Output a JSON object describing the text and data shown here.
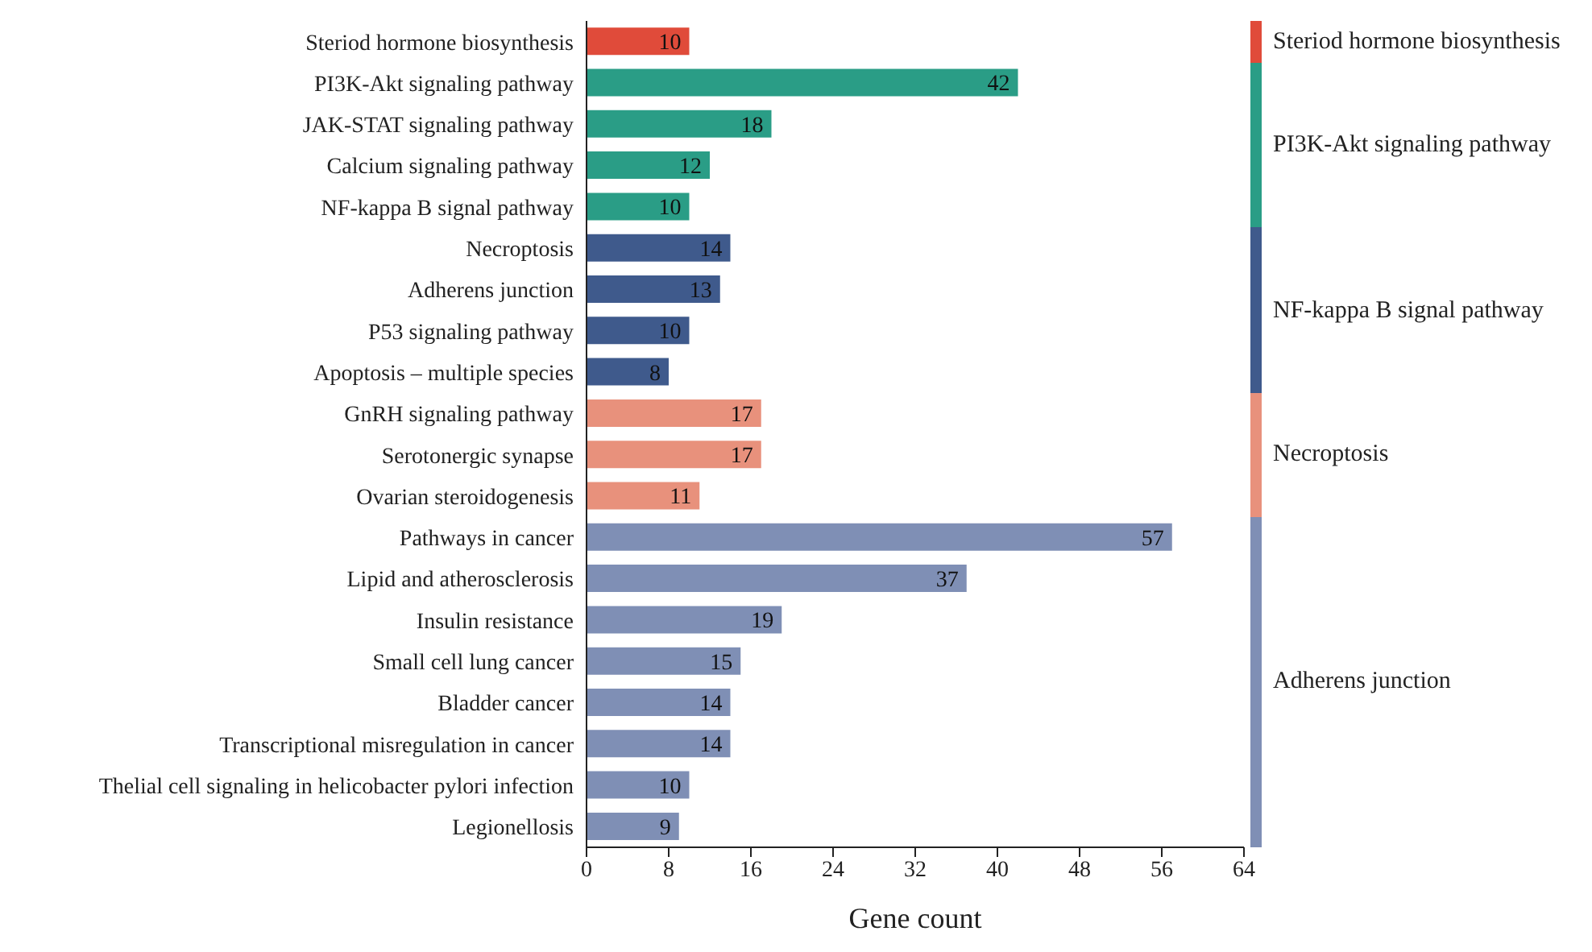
{
  "chart_data": {
    "type": "bar",
    "orientation": "horizontal",
    "xlabel": "Gene count",
    "categories": [
      "Steriod hormone biosynthesis",
      "PI3K-Akt signaling pathway",
      "JAK-STAT signaling pathway",
      "Calcium signaling pathway",
      "NF-kappa B signal pathway",
      "Necroptosis",
      "Adherens junction",
      "P53 signaling pathway",
      "Apoptosis – multiple species",
      "GnRH signaling pathway",
      "Serotonergic synapse",
      "Ovarian steroidogenesis",
      "Pathways in cancer",
      "Lipid and atherosclerosis",
      "Insulin resistance",
      "Small cell lung cancer",
      "Bladder cancer",
      "Transcriptional misregulation in cancer",
      "Thelial cell signaling in helicobacter pylori infection",
      "Legionellosis"
    ],
    "values": [
      10,
      42,
      18,
      12,
      10,
      14,
      13,
      10,
      8,
      17,
      17,
      11,
      57,
      37,
      19,
      15,
      14,
      14,
      10,
      9
    ],
    "colors": [
      "#e04b3a",
      "#2a9d86",
      "#2a9d86",
      "#2a9d86",
      "#2a9d86",
      "#3f5a8c",
      "#3f5a8c",
      "#3f5a8c",
      "#3f5a8c",
      "#e8917c",
      "#e8917c",
      "#e8917c",
      "#7f8fb5",
      "#7f8fb5",
      "#7f8fb5",
      "#7f8fb5",
      "#7f8fb5",
      "#7f8fb5",
      "#7f8fb5",
      "#7f8fb5"
    ],
    "xlim": [
      0,
      64
    ],
    "xticks": [
      0,
      8,
      16,
      24,
      32,
      40,
      48,
      56,
      64
    ],
    "data_labels": true,
    "grid": false,
    "annotations": [
      "Steriod hormone biosynthesis",
      "PI3K-Akt signaling pathway",
      "NF-kappa B signal pathway",
      "Necroptosis",
      "Adherens junction"
    ]
  }
}
